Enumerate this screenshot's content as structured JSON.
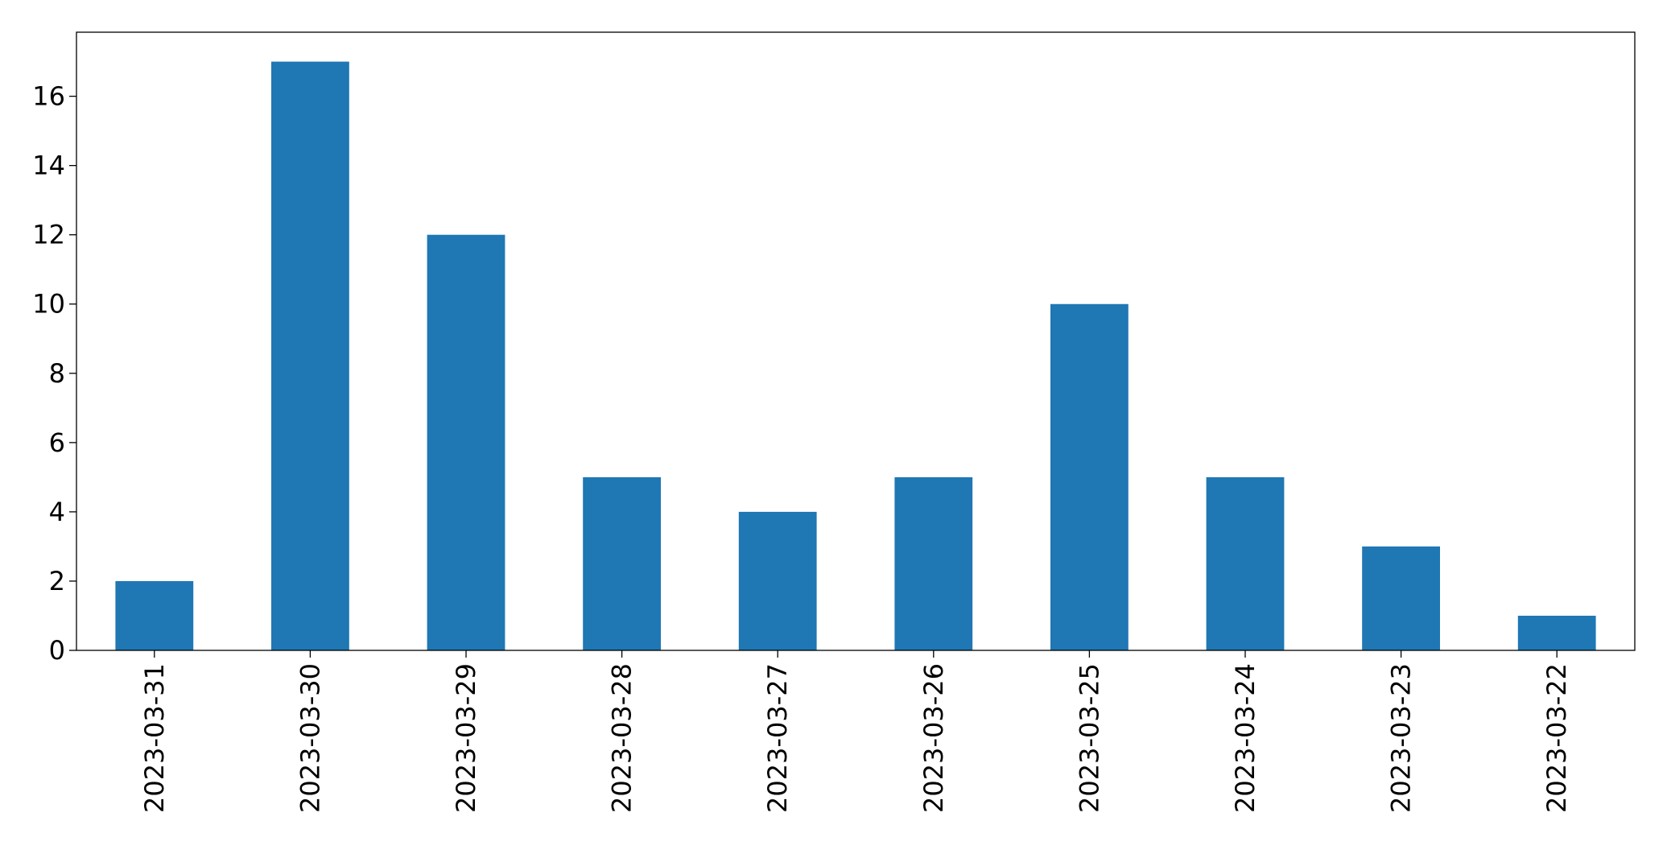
{
  "chart_data": {
    "type": "bar",
    "categories": [
      "2023-03-31",
      "2023-03-30",
      "2023-03-29",
      "2023-03-28",
      "2023-03-27",
      "2023-03-26",
      "2023-03-25",
      "2023-03-24",
      "2023-03-23",
      "2023-03-22"
    ],
    "values": [
      2,
      17,
      12,
      5,
      4,
      5,
      10,
      5,
      3,
      1
    ],
    "color": "#1f77b4",
    "ylim": [
      0,
      17.85
    ],
    "yticks": [
      0,
      2,
      4,
      6,
      8,
      10,
      12,
      14,
      16
    ],
    "grid": false
  }
}
